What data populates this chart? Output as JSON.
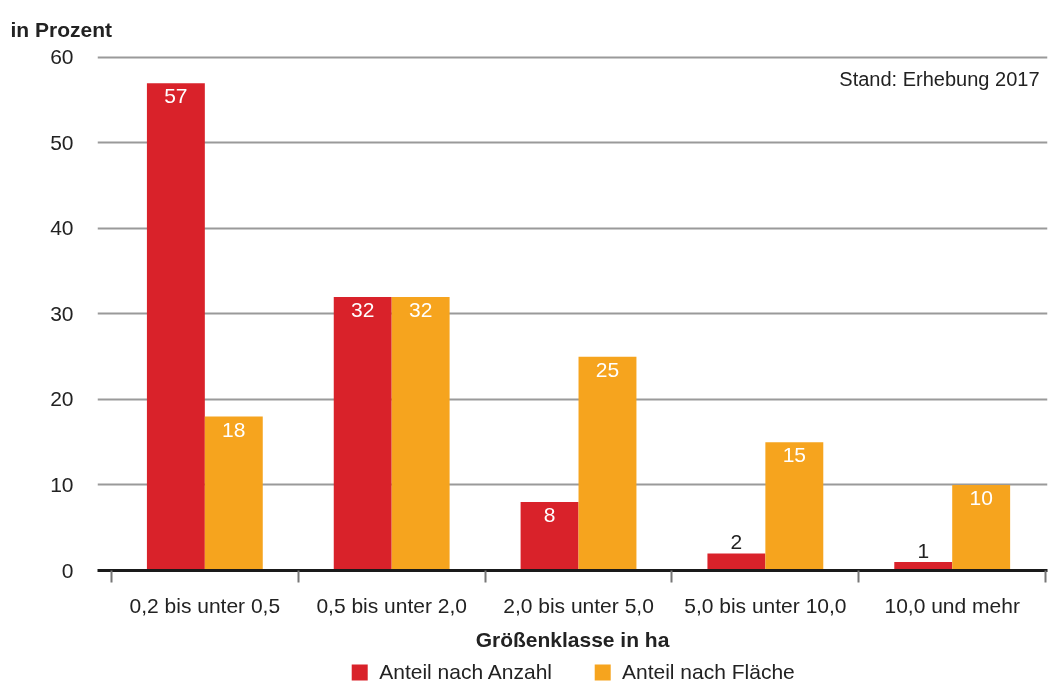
{
  "chart_data": {
    "type": "bar",
    "ylabel": "in Prozent",
    "xlabel": "Größenklasse in ha",
    "categories": [
      "0,2 bis unter 0,5",
      "0,5 bis unter 2,0",
      "2,0 bis unter 5,0",
      "5,0 bis unter 10,0",
      "10,0 und mehr"
    ],
    "series": [
      {
        "name": "Anteil nach Anzahl",
        "color": "#d9222a",
        "values": [
          57,
          32,
          8,
          2,
          1
        ]
      },
      {
        "name": "Anteil nach Fläche",
        "color": "#f6a41e",
        "values": [
          18,
          32,
          25,
          15,
          10
        ]
      }
    ],
    "ylim": [
      0,
      60
    ],
    "yticks": [
      0,
      10,
      20,
      30,
      40,
      50,
      60
    ],
    "grid": "y",
    "legend": "bottom",
    "data_labels": true,
    "annotations": [
      "Stand: Erhebung 2017"
    ]
  }
}
